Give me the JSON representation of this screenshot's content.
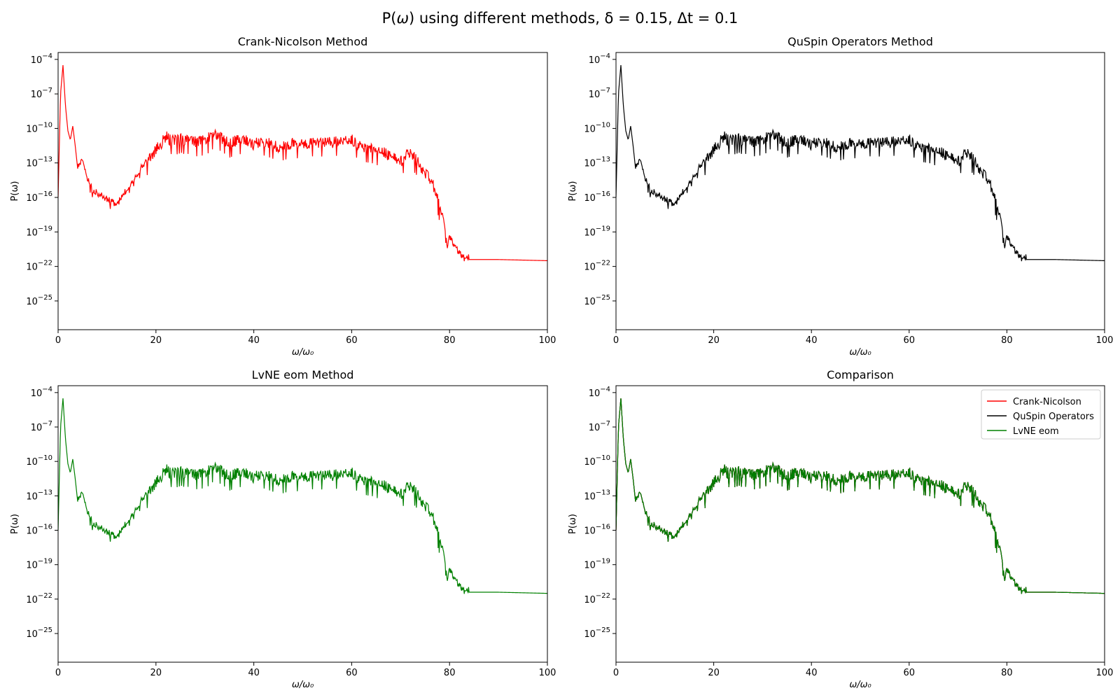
{
  "figure": {
    "title_prefix": "P(",
    "title_omega": "ω",
    "title_suffix": ") using different methods, δ = 0.15, Δt = 0.1"
  },
  "colors": {
    "crank": "#ff0000",
    "quspin": "#000000",
    "lvne": "#008000",
    "comparison_overlay": "#1a5c00"
  },
  "axes_common": {
    "xlabel": "ω/ω₀",
    "ylabel": "P(ω)",
    "xlim": [
      0,
      100
    ],
    "ylim_log10": [
      -27.5,
      -3.4
    ],
    "yscale": "log",
    "xticks": [
      "0",
      "20",
      "40",
      "60",
      "80",
      "100"
    ],
    "yticks_exponents": [
      "-4",
      "-7",
      "-10",
      "-13",
      "-16",
      "-19",
      "-22",
      "-25"
    ]
  },
  "panels": [
    {
      "title": "Crank-Nicolson Method",
      "series": [
        "crank"
      ]
    },
    {
      "title": "QuSpin Operators Method",
      "series": [
        "quspin"
      ]
    },
    {
      "title": "LvNE eom Method",
      "series": [
        "lvne"
      ]
    },
    {
      "title": "Comparison",
      "series": [
        "crank",
        "quspin",
        "lvne"
      ]
    }
  ],
  "legend": {
    "placement": "upper right",
    "entries": [
      "Crank-Nicolson",
      "QuSpin Operators",
      "LvNE eom"
    ]
  },
  "chart_data": {
    "type": "line",
    "yscale": "log",
    "xlabel": "ω/ω₀",
    "ylabel": "P(ω)",
    "xlim": [
      0,
      100
    ],
    "note_units": "y values given as log10(P)",
    "series": [
      {
        "name": "Crank-Nicolson",
        "x": [
          0,
          0.5,
          1,
          1.5,
          2,
          2.5,
          3,
          3.5,
          4,
          5,
          6,
          7,
          8,
          10,
          12,
          14,
          16,
          18,
          20,
          21,
          22,
          23,
          25,
          28,
          30,
          32,
          35,
          38,
          40,
          42,
          45,
          48,
          50,
          52,
          55,
          58,
          60,
          62,
          65,
          68,
          70,
          72,
          74,
          75,
          76,
          77,
          78,
          79,
          79.5,
          80,
          81,
          82,
          83,
          84,
          90,
          100
        ],
        "log10_y": [
          -16,
          -7,
          -4.5,
          -8,
          -10.2,
          -11,
          -9.8,
          -11.5,
          -13.5,
          -13,
          -14.5,
          -15.5,
          -15.8,
          -16.3,
          -16.8,
          -15.5,
          -14.2,
          -13,
          -12,
          -11.5,
          -10.8,
          -11.2,
          -11,
          -11.3,
          -11.2,
          -10.6,
          -11.4,
          -11,
          -11.5,
          -11.2,
          -11.8,
          -11.4,
          -11.5,
          -11.4,
          -11.4,
          -11.2,
          -11.1,
          -11.8,
          -12,
          -12.5,
          -13,
          -12.2,
          -13.4,
          -14,
          -14.5,
          -15.5,
          -17,
          -18.5,
          -20.7,
          -19.6,
          -20.3,
          -21,
          -21.5,
          -21.4,
          -21.4,
          -21.5
        ]
      },
      {
        "name": "QuSpin Operators",
        "x": [
          0,
          0.5,
          1,
          1.5,
          2,
          2.5,
          3,
          3.5,
          4,
          5,
          6,
          7,
          8,
          10,
          12,
          14,
          16,
          18,
          20,
          21,
          22,
          23,
          25,
          28,
          30,
          32,
          35,
          38,
          40,
          42,
          45,
          48,
          50,
          52,
          55,
          58,
          60,
          62,
          65,
          68,
          70,
          72,
          74,
          75,
          76,
          77,
          78,
          79,
          79.5,
          80,
          81,
          82,
          83,
          84,
          90,
          100
        ],
        "log10_y": [
          -16,
          -7,
          -4.5,
          -8,
          -10.2,
          -11,
          -9.8,
          -11.5,
          -13.5,
          -13,
          -14.5,
          -15.5,
          -15.8,
          -16.3,
          -16.8,
          -15.5,
          -14.2,
          -13,
          -12,
          -11.5,
          -10.8,
          -11.2,
          -11,
          -11.3,
          -11.2,
          -10.6,
          -11.4,
          -11,
          -11.5,
          -11.2,
          -11.8,
          -11.4,
          -11.5,
          -11.4,
          -11.4,
          -11.2,
          -11.1,
          -11.8,
          -12,
          -12.5,
          -13,
          -12.2,
          -13.4,
          -14,
          -14.5,
          -15.5,
          -17,
          -18.5,
          -20.7,
          -19.6,
          -20.3,
          -21,
          -21.5,
          -21.4,
          -21.4,
          -21.5
        ]
      },
      {
        "name": "LvNE eom",
        "x": [
          0,
          0.5,
          1,
          1.5,
          2,
          2.5,
          3,
          3.5,
          4,
          5,
          6,
          7,
          8,
          10,
          12,
          14,
          16,
          18,
          20,
          21,
          22,
          23,
          25,
          28,
          30,
          32,
          35,
          38,
          40,
          42,
          45,
          48,
          50,
          52,
          55,
          58,
          60,
          62,
          65,
          68,
          70,
          72,
          74,
          75,
          76,
          77,
          78,
          79,
          79.5,
          80,
          81,
          82,
          83,
          84,
          90,
          100
        ],
        "log10_y": [
          -16,
          -7,
          -4.5,
          -8,
          -10.2,
          -11,
          -9.8,
          -11.5,
          -13.5,
          -13,
          -14.5,
          -15.5,
          -15.8,
          -16.3,
          -16.8,
          -15.5,
          -14.2,
          -13,
          -12,
          -11.5,
          -10.8,
          -11.2,
          -11,
          -11.3,
          -11.2,
          -10.6,
          -11.4,
          -11,
          -11.5,
          -11.2,
          -11.8,
          -11.4,
          -11.5,
          -11.4,
          -11.4,
          -11.2,
          -11.1,
          -11.8,
          -12,
          -12.5,
          -13,
          -12.2,
          -13.4,
          -14,
          -14.5,
          -15.5,
          -17,
          -18.5,
          -20.7,
          -19.6,
          -20.3,
          -21,
          -21.5,
          -21.4,
          -21.4,
          -21.5
        ]
      }
    ]
  }
}
